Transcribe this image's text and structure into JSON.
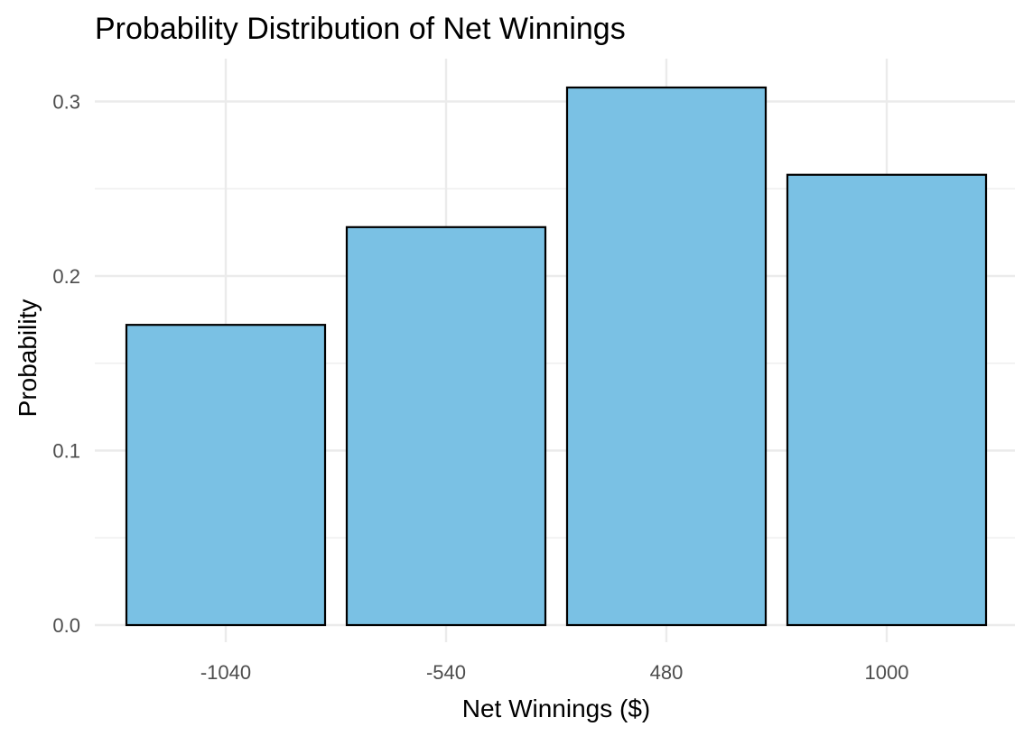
{
  "chart_data": {
    "type": "bar",
    "title": "Probability Distribution of Net Winnings",
    "xlabel": "Net Winnings ($)",
    "ylabel": "Probability",
    "categories": [
      "-1040",
      "-540",
      "480",
      "1000"
    ],
    "values": [
      0.172,
      0.228,
      0.308,
      0.258
    ],
    "ylim": [
      0,
      0.32
    ],
    "yticks": [
      "0.0",
      "0.1",
      "0.2",
      "0.3"
    ],
    "ytick_values": [
      0,
      0.1,
      0.2,
      0.3
    ],
    "y_minor_tick_values": [
      0.05,
      0.15,
      0.25
    ],
    "grid": true,
    "legend": "none",
    "colors": {
      "bar_fill": "#7AC1E4",
      "bar_stroke": "#000000",
      "grid": "#EBEBEB"
    }
  }
}
